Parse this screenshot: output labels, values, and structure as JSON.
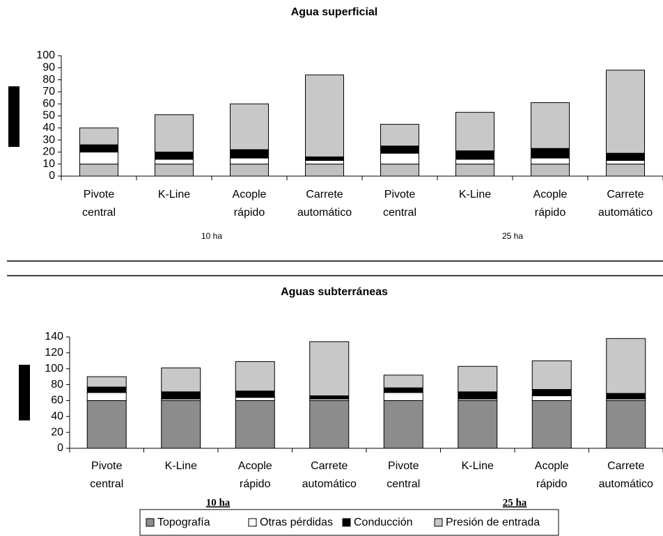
{
  "chart_data": [
    {
      "type": "bar",
      "stacked": true,
      "title": "Agua superficial",
      "categories": [
        "Pivote central",
        "K-Line",
        "Acople rápido",
        "Carrete automático",
        "Pivote central",
        "K-Line",
        "Acople rápido",
        "Carrete automático"
      ],
      "group_labels": [
        "10 ha",
        "25 ha"
      ],
      "series": [
        {
          "color": "#c0c0c0",
          "values": [
            10,
            10,
            10,
            10,
            10,
            10,
            10,
            10
          ]
        },
        {
          "color": "#ffffff",
          "values": [
            10,
            4,
            5,
            3,
            9,
            4,
            5,
            3
          ]
        },
        {
          "color": "#000000",
          "values": [
            6,
            6,
            7,
            3,
            6,
            7,
            8,
            6
          ]
        },
        {
          "color": "#c8c8c8",
          "values": [
            14,
            31,
            38,
            68,
            18,
            32,
            38,
            69
          ]
        }
      ],
      "ylim": [
        0,
        100
      ],
      "yticks": [
        0,
        10,
        20,
        30,
        40,
        50,
        60,
        70,
        80,
        90,
        100
      ],
      "grid": false
    },
    {
      "type": "bar",
      "stacked": true,
      "title": "Aguas subterráneas",
      "categories": [
        "Pivote central",
        "K-Line",
        "Acople rápido",
        "Carrete automático",
        "Pivote central",
        "K-Line",
        "Acople rápido",
        "Carrete automático"
      ],
      "group_labels": [
        "10 ha",
        "25 ha"
      ],
      "series": [
        {
          "name": "Topografía",
          "color": "#8c8c8c",
          "values": [
            60,
            60,
            60,
            60,
            60,
            60,
            60,
            60
          ]
        },
        {
          "name": "Otras pérdidas",
          "color": "#ffffff",
          "values": [
            10,
            2,
            4,
            2,
            10,
            2,
            6,
            2
          ]
        },
        {
          "name": "Conducción",
          "color": "#000000",
          "values": [
            7,
            9,
            8,
            4,
            6,
            9,
            8,
            7
          ]
        },
        {
          "name": "Presión de entrada",
          "color": "#c8c8c8",
          "values": [
            13,
            30,
            37,
            68,
            16,
            32,
            36,
            69
          ]
        }
      ],
      "ylim": [
        0,
        140
      ],
      "yticks": [
        0,
        20,
        40,
        60,
        80,
        100,
        120,
        140
      ],
      "grid": false,
      "legend": "bottom"
    }
  ]
}
